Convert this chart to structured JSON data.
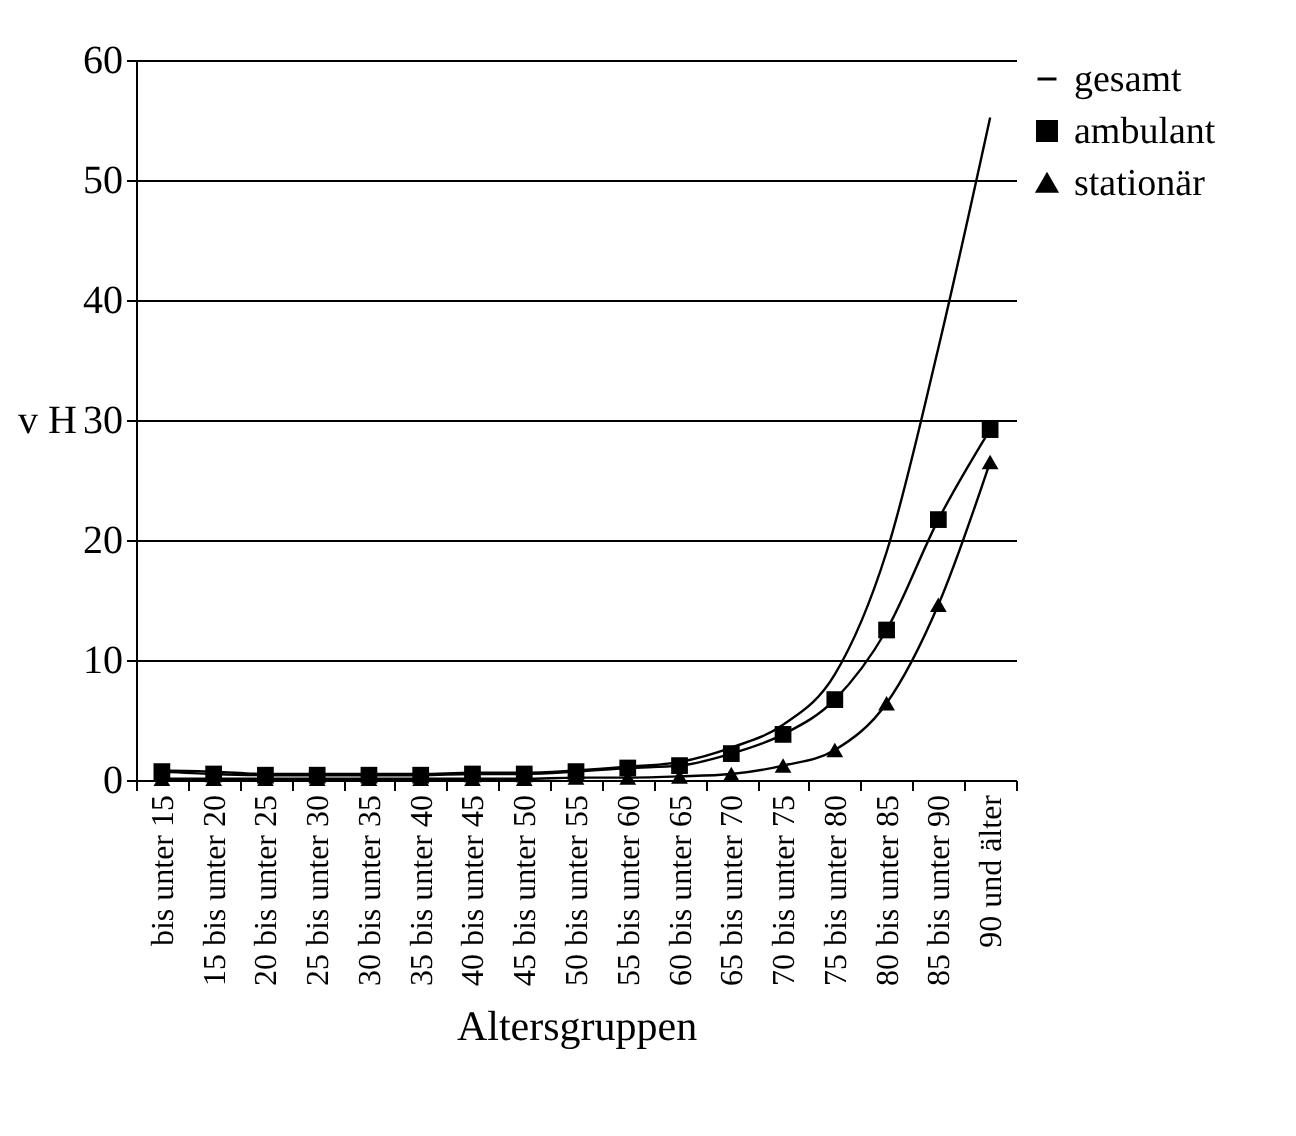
{
  "chart_data": {
    "type": "line",
    "xlabel": "Altersgruppen",
    "ylabel": "v H",
    "categories": [
      "bis unter 15",
      "15 bis unter 20",
      "20 bis unter 25",
      "25 bis unter 30",
      "30 bis unter 35",
      "35 bis unter 40",
      "40 bis unter 45",
      "45 bis unter 50",
      "50 bis unter 55",
      "55 bis unter 60",
      "60 bis unter 65",
      "65 bis unter 70",
      "70 bis unter 75",
      "75 bis unter 80",
      "80 bis unter 85",
      "85 bis unter 90",
      "90 und älter"
    ],
    "series": [
      {
        "name": "gesamt",
        "color": "#000000",
        "values": [
          0.8,
          0.7,
          0.5,
          0.5,
          0.5,
          0.5,
          0.6,
          0.6,
          0.8,
          1.1,
          1.5,
          2.7,
          4.6,
          8.8,
          19,
          36,
          55.2
        ]
      },
      {
        "name": "ambulant",
        "color": "#000000",
        "marker": "square",
        "values": [
          0.7,
          0.5,
          0.4,
          0.4,
          0.4,
          0.4,
          0.5,
          0.5,
          0.7,
          1.0,
          1.2,
          2.2,
          3.8,
          6.7,
          12.5,
          21.7,
          29.2
        ]
      },
      {
        "name": "stationär",
        "color": "#000000",
        "marker": "triangle",
        "values": [
          0.1,
          0.1,
          0.1,
          0.1,
          0.1,
          0.1,
          0.1,
          0.1,
          0.2,
          0.2,
          0.3,
          0.5,
          1.2,
          2.5,
          6.4,
          14.6,
          26.5
        ]
      }
    ],
    "ylim": [
      0,
      60
    ],
    "yticks": [
      0,
      10,
      20,
      30,
      40,
      50,
      60
    ],
    "grid": "y",
    "legend": "right"
  }
}
